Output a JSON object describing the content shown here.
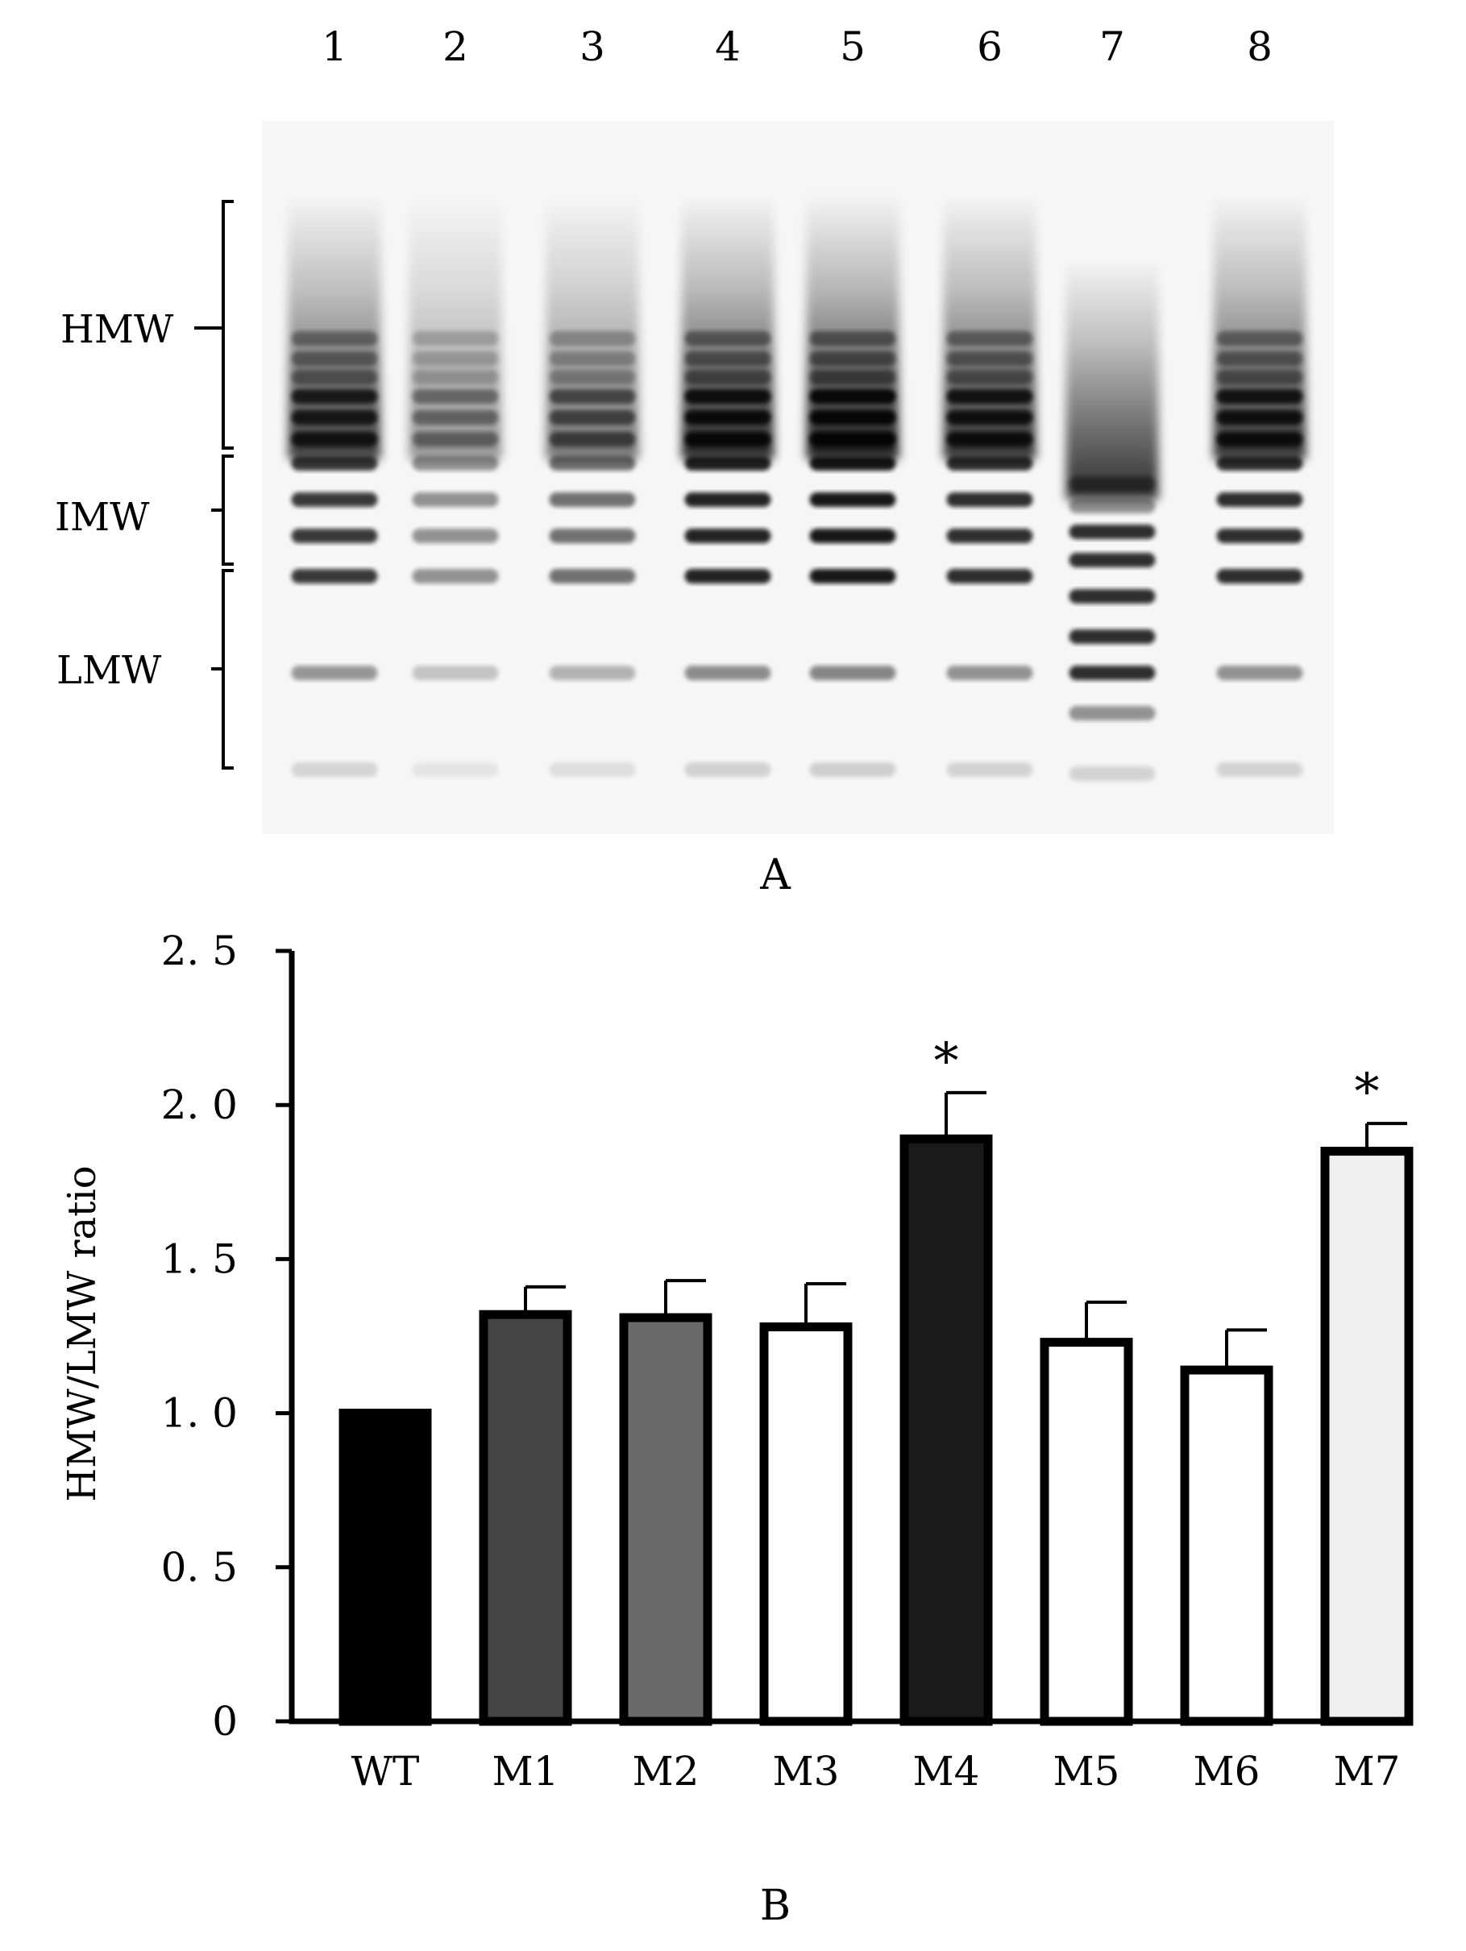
{
  "panel_a": {
    "lane_labels": [
      "1",
      "2",
      "3",
      "4",
      "5",
      "6",
      "7",
      "8"
    ],
    "bracket_labels": [
      "HMW",
      "IMW",
      "LMW"
    ],
    "caption": "A"
  },
  "panel_b": {
    "caption": "B"
  },
  "chart_data": {
    "type": "bar",
    "categories": [
      "WT",
      "M1",
      "M2",
      "M3",
      "M4",
      "M5",
      "M6",
      "M7"
    ],
    "values": [
      1.0,
      1.32,
      1.31,
      1.28,
      1.89,
      1.23,
      1.14,
      1.85
    ],
    "errors": [
      0,
      0.09,
      0.12,
      0.14,
      0.15,
      0.13,
      0.13,
      0.09
    ],
    "significance": [
      "",
      "",
      "",
      "",
      "*",
      "",
      "",
      "*"
    ],
    "bar_colors": [
      "#000000",
      "#454545",
      "#6a6a6a",
      "#ffffff",
      "#1a1a1a",
      "#ffffff",
      "#ffffff",
      "#f0f0f0"
    ],
    "xlabel": "",
    "ylabel": "HMW/LMW ratio",
    "ylim": [
      0,
      2.5
    ],
    "yticks": [
      0,
      0.5,
      1.0,
      1.5,
      2.0,
      2.5
    ],
    "ytick_labels": [
      "0",
      "0. 5",
      "1. 0",
      "1. 5",
      "2. 0",
      "2. 5"
    ],
    "grid": false,
    "legend": "none"
  }
}
